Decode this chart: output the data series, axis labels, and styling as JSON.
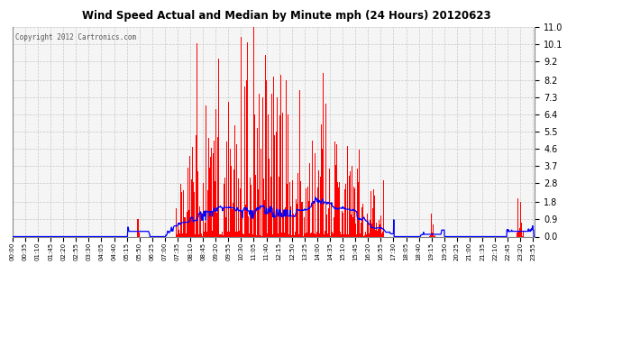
{
  "title": "Wind Speed Actual and Median by Minute mph (24 Hours) 20120623",
  "copyright": "Copyright 2012 Cartronics.com",
  "bar_color": "#ff0000",
  "line_color": "#0000ff",
  "background_color": "#ffffff",
  "plot_bg_color": "#f5f5f5",
  "grid_color": "#c8c8c8",
  "yticks": [
    0.0,
    0.9,
    1.8,
    2.8,
    3.7,
    4.6,
    5.5,
    6.4,
    7.3,
    8.2,
    9.2,
    10.1,
    11.0
  ],
  "ylim": [
    0.0,
    11.0
  ],
  "total_minutes": 1440
}
